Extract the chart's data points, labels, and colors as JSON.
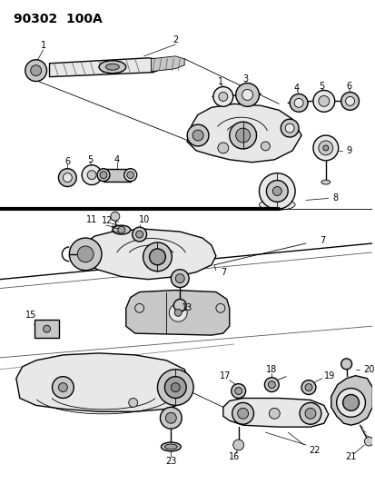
{
  "bg_color": "#ffffff",
  "line_color": "#000000",
  "fig_width": 4.14,
  "fig_height": 5.33,
  "dpi": 100,
  "header": "90302  100A",
  "gray_light": "#e8e8e8",
  "gray_med": "#c8c8c8",
  "gray_dark": "#a0a0a0",
  "gray_fill": "#d4d4d4"
}
